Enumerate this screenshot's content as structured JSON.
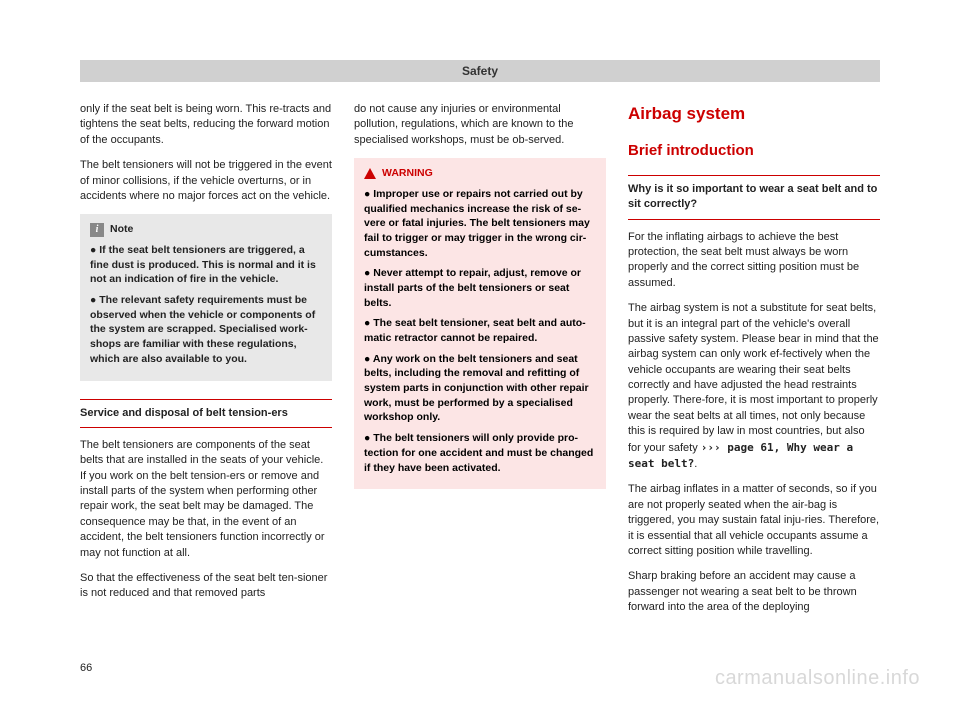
{
  "header": {
    "title": "Safety"
  },
  "col1": {
    "p1": "only if the seat belt is being worn. This re-tracts and tightens the seat belts, reducing the forward motion of the occupants.",
    "p2": "The belt tensioners will not be triggered in the event of minor collisions, if the vehicle overturns, or in accidents where no major forces act on the vehicle.",
    "note": {
      "label": "Note",
      "items": [
        "If the seat belt tensioners are triggered, a fine dust is produced. This is normal and it is not an indication of fire in the vehicle.",
        "The relevant safety requirements must be observed when the vehicle or components of the system are scrapped. Specialised work-shops are familiar with these regulations, which are also available to you."
      ]
    },
    "sub": "Service and disposal of belt tension-ers",
    "p3": "The belt tensioners are components of the seat belts that are installed in the seats of your vehicle. If you work on the belt tension-ers or remove and install parts of the system when performing other repair work, the seat belt may be damaged. The consequence may be that, in the event of an accident, the belt tensioners function incorrectly or may not function at all.",
    "p4": "So that the effectiveness of the seat belt ten-sioner is not reduced and that removed parts"
  },
  "col2": {
    "p1": "do not cause any injuries or environmental pollution, regulations, which are known to the specialised workshops, must be ob-served.",
    "warn": {
      "label": "WARNING",
      "items": [
        "Improper use or repairs not carried out by qualified mechanics increase the risk of se-vere or fatal injuries. The belt tensioners may fail to trigger or may trigger in the wrong cir-cumstances.",
        "Never attempt to repair, adjust, remove or install parts of the belt tensioners or seat belts.",
        "The seat belt tensioner, seat belt and auto-matic retractor cannot be repaired.",
        "Any work on the belt tensioners and seat belts, including the removal and refitting of system parts in conjunction with other repair work, must be performed by a specialised workshop only.",
        "The belt tensioners will only provide pro-tection for one accident and must be changed if they have been activated."
      ]
    }
  },
  "col3": {
    "h1": "Airbag system",
    "h2": "Brief introduction",
    "sub": "Why is it so important to wear a seat belt and to sit correctly?",
    "p1": "For the inflating airbags to achieve the best protection, the seat belt must always be worn properly and the correct sitting position must be assumed.",
    "p2a": "The airbag system is not a substitute for seat belts, but it is an integral part of the vehicle's overall passive safety system. Please bear in mind that the airbag system can only work ef-fectively when the vehicle occupants are wearing their seat belts correctly and have adjusted the head restraints properly. There-fore, it is most important to properly wear the seat belts at all times, not only because this is required by law in most countries, but also for your safety ",
    "p2ref": "››› page 61, Why wear a seat belt?",
    "p2b": ".",
    "p3": "The airbag inflates in a matter of seconds, so if you are not properly seated when the air-bag is triggered, you may sustain fatal inju-ries. Therefore, it is essential that all vehicle occupants assume a correct sitting position while travelling.",
    "p4": "Sharp braking before an accident may cause a passenger not wearing a seat belt to be thrown forward into the area of the deploying"
  },
  "pageNumber": "66",
  "watermark": "carmanualsonline.info",
  "colors": {
    "accent": "#c00",
    "header_bg": "#d0d0d0",
    "note_bg": "#e8e8e8",
    "warn_bg": "#fce5e5",
    "watermark": "#d8d8d8"
  }
}
